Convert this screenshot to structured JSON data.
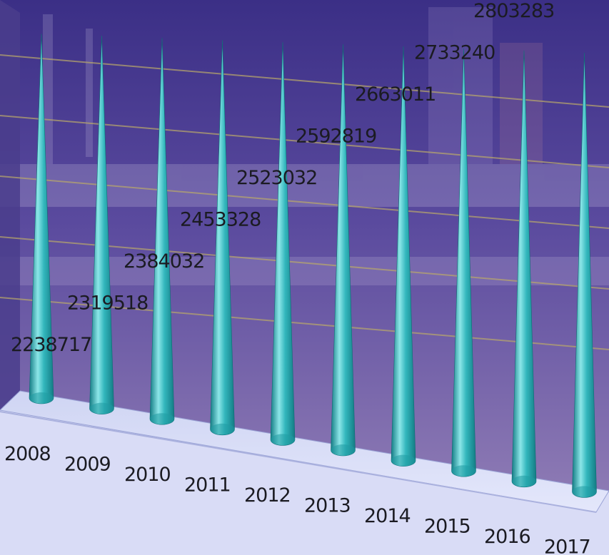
{
  "chart_data": {
    "type": "bar",
    "bar_shape": "cone",
    "three_d": true,
    "grid": true,
    "legend": "none",
    "title": "",
    "xlabel": "",
    "ylabel": "",
    "categories": [
      "2008",
      "2009",
      "2010",
      "2011",
      "2012",
      "2013",
      "2014",
      "2015",
      "2016",
      "2017"
    ],
    "values": [
      2238717,
      2319518,
      2384032,
      2453328,
      2523032,
      2592819,
      2663011,
      2733240,
      2803283,
      null
    ],
    "value_labels": [
      "2238717",
      "2319518",
      "2384032",
      "2453328",
      "2523032",
      "2592819",
      "2663011",
      "2733240",
      "2803283",
      ""
    ],
    "colors": {
      "cone": "#33b7bd",
      "cone_light": "#8ce6e8",
      "cone_dark": "#137c84",
      "background_top": "#3b2f86",
      "background_bottom": "#8d7ab4",
      "floor": "#d6dcf6",
      "gridline": "#b9a86a",
      "text": "#1b1b22"
    }
  }
}
